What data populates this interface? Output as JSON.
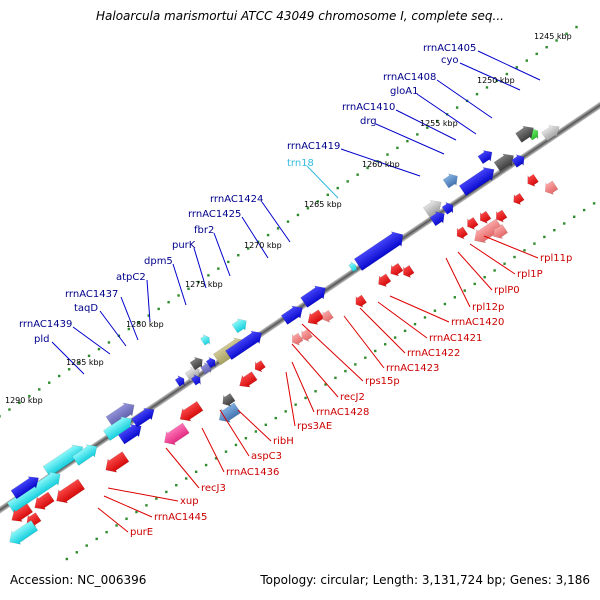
{
  "title": "Haloarcula marismortui ATCC 43049 chromosome I, complete seq...",
  "accession": "Accession: NC_006396",
  "summary": "Topology: circular; Length: 3,131,724 bp; Genes: 3,186",
  "scale": {
    "ticks": [
      "1245 kbp",
      "1250 kbp",
      "1255 kbp",
      "1260 kbp",
      "1265 kbp",
      "1270 kbp",
      "1275 kbp",
      "1280 kbp",
      "1285 kbp",
      "1290 kbp"
    ]
  },
  "labels": {
    "forward": [
      "rrnAC1405",
      "cyo",
      "rrnAC1408",
      "gloA1",
      "rrnAC1410",
      "drg",
      "rrnAC1419",
      "trn18",
      "rrnAC1424",
      "rrnAC1425",
      "fbr2",
      "purK",
      "dpm5",
      "atpC2",
      "rrnAC1437",
      "taqD",
      "rrnAC1439",
      "pld"
    ],
    "reverse": [
      "rpl11p",
      "rpl1P",
      "rplP0",
      "rpl12p",
      "rrnAC1420",
      "rrnAC1421",
      "rrnAC1422",
      "rrnAC1423",
      "rps15p",
      "recJ2",
      "rrnAC1428",
      "rps3AE",
      "ribH",
      "aspC3",
      "rrnAC1436",
      "recJ3",
      "xup",
      "rrnAC1445",
      "purE"
    ]
  },
  "colors": {
    "forward_label": "#00008b",
    "trna_label": "#33bbdd",
    "reverse_label": "#cc0000",
    "forward_gene": "#0000ee",
    "reverse_gene": "#ee0000",
    "backbone": "#6e6e6e",
    "dots": "#2e8b2e"
  }
}
